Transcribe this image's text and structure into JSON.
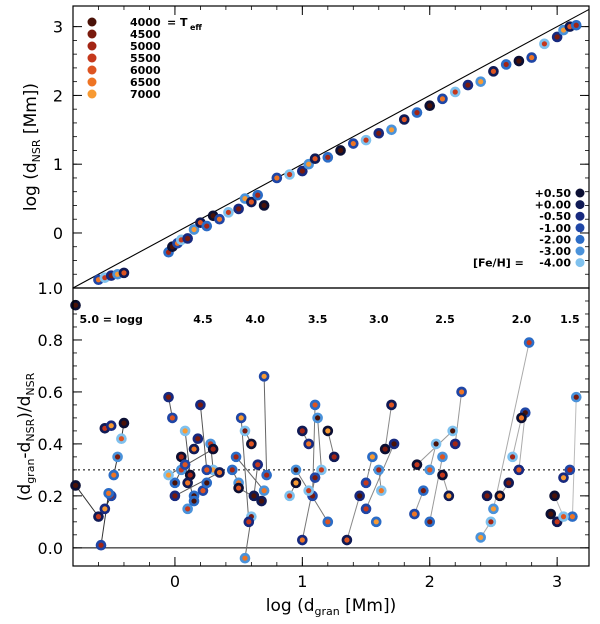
{
  "chart_data": [
    {
      "type": "scatter",
      "panel": "top",
      "ylabel": "log (d_NSR [Mm])",
      "ylabel_base": "log (d",
      "ylabel_sub": "NSR",
      "ylabel_tail": " [Mm])",
      "xlim": [
        -0.8,
        3.25
      ],
      "ylim": [
        -0.8,
        3.3
      ],
      "y_ticks": [
        0,
        1,
        2,
        3
      ],
      "y_tick_labels": [
        "0",
        "1",
        "2",
        "3"
      ],
      "identity_line": true,
      "points_x": [
        -0.78,
        -0.6,
        -0.55,
        -0.5,
        -0.45,
        -0.4,
        -0.05,
        -0.02,
        0.02,
        0.05,
        0.1,
        0.15,
        0.2,
        0.25,
        0.3,
        0.35,
        0.42,
        0.5,
        0.55,
        0.6,
        0.65,
        0.7,
        0.8,
        0.9,
        1.0,
        1.05,
        1.1,
        1.2,
        1.3,
        1.4,
        1.5,
        1.6,
        1.7,
        1.8,
        1.9,
        2.0,
        2.1,
        2.2,
        2.3,
        2.4,
        2.5,
        2.6,
        2.7,
        2.8,
        2.9,
        3.0,
        3.05,
        3.1,
        3.15
      ],
      "points_y": [
        -1.05,
        -0.68,
        -0.65,
        -0.62,
        -0.6,
        -0.58,
        -0.28,
        -0.2,
        -0.15,
        -0.1,
        -0.08,
        0.05,
        0.15,
        0.1,
        0.25,
        0.2,
        0.3,
        0.35,
        0.5,
        0.45,
        0.55,
        0.4,
        0.8,
        0.85,
        0.9,
        1.0,
        1.08,
        1.1,
        1.2,
        1.3,
        1.35,
        1.45,
        1.5,
        1.65,
        1.75,
        1.85,
        1.95,
        2.05,
        2.15,
        2.2,
        2.35,
        2.45,
        2.5,
        2.55,
        2.75,
        2.85,
        2.95,
        3.0,
        3.02
      ],
      "teff_legend": {
        "labels": [
          "4000",
          "4500",
          "5000",
          "5500",
          "6000",
          "6500",
          "7000"
        ],
        "suffix": "= T",
        "suffix_sub": "eff",
        "colors": [
          "#4a1208",
          "#7a1a0d",
          "#a32514",
          "#c5381c",
          "#dd5421",
          "#ee7424",
          "#f89a32"
        ]
      },
      "feh_legend": {
        "labels": [
          "+0.50",
          "+0.00",
          "-0.50",
          "-1.00",
          "-2.00",
          "-3.00",
          "-4.00"
        ],
        "prefix": "[Fe/H] =",
        "colors": [
          "#0b0f33",
          "#101a55",
          "#17297f",
          "#1f46a6",
          "#2b6cc6",
          "#4a92da",
          "#7fc1ee"
        ]
      }
    },
    {
      "type": "scatter",
      "panel": "bottom",
      "xlabel_base": "log (d",
      "xlabel_sub": "gran",
      "xlabel_tail": " [Mm])",
      "ylabel_parts": [
        "(d",
        "gran",
        "-d",
        "NSR",
        ")/d",
        "NSR"
      ],
      "xlim": [
        -0.8,
        3.25
      ],
      "ylim": [
        -0.07,
        1.0
      ],
      "x_ticks": [
        0,
        1,
        2,
        3
      ],
      "x_tick_labels": [
        "0",
        "1",
        "2",
        "3"
      ],
      "y_ticks": [
        0.0,
        0.2,
        0.4,
        0.6,
        0.8,
        1.0
      ],
      "y_tick_labels": [
        "0.0",
        "0.2",
        "0.4",
        "0.6",
        "0.8",
        "1.0"
      ],
      "reference_line_y": 0.3,
      "zero_line_y": 0.0,
      "logg_labels": [
        {
          "x": -0.5,
          "text": "5.0 = logg"
        },
        {
          "x": 0.22,
          "text": "4.5"
        },
        {
          "x": 0.63,
          "text": "4.0"
        },
        {
          "x": 1.12,
          "text": "3.5"
        },
        {
          "x": 1.6,
          "text": "3.0"
        },
        {
          "x": 2.12,
          "text": "2.5"
        },
        {
          "x": 2.72,
          "text": "2.0"
        },
        {
          "x": 3.1,
          "text": "1.5"
        }
      ],
      "series": [
        {
          "name": "logg 5.0",
          "line": "#333333",
          "x": [
            -0.78,
            -0.6,
            -0.55,
            -0.5,
            -0.48,
            -0.45,
            -0.42,
            -0.4,
            -0.55,
            -0.5,
            -0.58,
            -0.52
          ],
          "y": [
            0.24,
            0.12,
            0.15,
            0.2,
            0.28,
            0.35,
            0.42,
            0.48,
            0.46,
            0.47,
            0.01,
            0.21
          ]
        },
        {
          "name": "logg 4.5",
          "line": "#555555",
          "x": [
            -0.05,
            -0.02,
            0.0,
            0.05,
            0.08,
            0.12,
            0.15,
            0.18,
            0.22,
            0.25,
            0.28,
            0.3,
            0.05,
            0.1,
            0.2,
            0.25,
            0.15,
            0.1,
            -0.05,
            0.3,
            0.35,
            0.0,
            0.08,
            0.15
          ],
          "y": [
            0.58,
            0.5,
            0.25,
            0.3,
            0.45,
            0.28,
            0.38,
            0.42,
            0.22,
            0.25,
            0.4,
            0.3,
            0.35,
            0.25,
            0.55,
            0.3,
            0.2,
            0.15,
            0.28,
            0.38,
            0.29,
            0.2,
            0.32,
            0.18
          ]
        },
        {
          "name": "logg 4.0",
          "line": "#666666",
          "x": [
            0.45,
            0.5,
            0.55,
            0.6,
            0.62,
            0.65,
            0.7,
            0.72,
            0.55,
            0.6,
            0.5,
            0.68,
            0.58,
            0.52,
            0.48,
            0.7
          ],
          "y": [
            0.3,
            0.25,
            0.45,
            0.4,
            0.2,
            0.32,
            0.66,
            0.28,
            -0.04,
            0.12,
            0.23,
            0.18,
            0.1,
            0.5,
            0.35,
            0.22
          ]
        },
        {
          "name": "logg 3.5",
          "line": "#777777",
          "x": [
            0.9,
            0.95,
            1.0,
            1.05,
            1.08,
            1.1,
            1.12,
            1.15,
            1.2,
            1.25,
            1.0,
            1.1,
            1.2,
            0.95,
            1.05
          ],
          "y": [
            0.2,
            0.25,
            0.45,
            0.4,
            0.2,
            0.55,
            0.5,
            0.3,
            0.45,
            0.35,
            0.03,
            0.27,
            0.1,
            0.3,
            0.22
          ]
        },
        {
          "name": "logg 3.0",
          "line": "#888888",
          "x": [
            1.35,
            1.45,
            1.5,
            1.55,
            1.6,
            1.62,
            1.65,
            1.7,
            1.72,
            1.5,
            1.58
          ],
          "y": [
            0.03,
            0.2,
            0.25,
            0.35,
            0.3,
            0.22,
            0.38,
            0.55,
            0.4,
            0.15,
            0.1
          ]
        },
        {
          "name": "logg 2.5",
          "line": "#999999",
          "x": [
            1.88,
            1.95,
            2.0,
            2.05,
            2.1,
            2.15,
            2.2,
            2.25,
            2.0,
            2.1,
            2.18,
            1.9
          ],
          "y": [
            0.13,
            0.22,
            0.3,
            0.4,
            0.28,
            0.2,
            0.4,
            0.6,
            0.1,
            0.35,
            0.45,
            0.32
          ]
        },
        {
          "name": "logg 2.0",
          "line": "#aaaaaa",
          "x": [
            2.4,
            2.48,
            2.55,
            2.62,
            2.7,
            2.75,
            2.78,
            2.5,
            2.65,
            2.72,
            2.45
          ],
          "y": [
            0.04,
            0.1,
            0.2,
            0.25,
            0.3,
            0.52,
            0.79,
            0.15,
            0.35,
            0.5,
            0.2
          ]
        },
        {
          "name": "logg 1.5",
          "line": "#bbbbbb",
          "x": [
            2.95,
            3.0,
            3.05,
            3.1,
            3.12,
            3.15,
            3.05,
            2.98
          ],
          "y": [
            0.13,
            0.1,
            0.27,
            0.3,
            0.12,
            0.58,
            0.12,
            0.2
          ]
        }
      ]
    }
  ]
}
